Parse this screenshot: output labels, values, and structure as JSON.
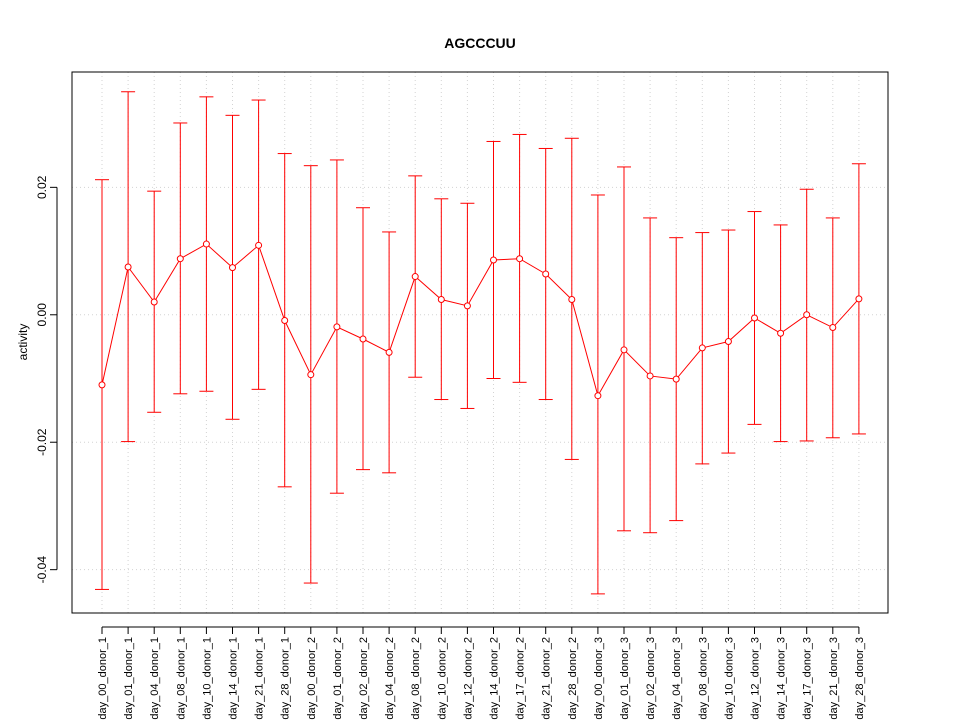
{
  "chart_data": {
    "type": "line",
    "title": "AGCCCUU",
    "xlabel": "",
    "ylabel": "activity",
    "ylim": [
      -0.0468,
      0.0381
    ],
    "yticks": [
      -0.04,
      -0.02,
      0.0,
      0.02
    ],
    "ytick_labels": [
      "-0.04",
      "-0.02",
      "0.00",
      "0.02"
    ],
    "grid": true,
    "legend": "none",
    "colors": {
      "series": "#ff0000",
      "grid": "#d3d3d3",
      "axis": "#000000"
    },
    "categories": [
      "day_00_donor_1",
      "day_01_donor_1",
      "day_04_donor_1",
      "day_08_donor_1",
      "day_10_donor_1",
      "day_14_donor_1",
      "day_21_donor_1",
      "day_28_donor_1",
      "day_00_donor_2",
      "day_01_donor_2",
      "day_02_donor_2",
      "day_04_donor_2",
      "day_08_donor_2",
      "day_10_donor_2",
      "day_12_donor_2",
      "day_14_donor_2",
      "day_17_donor_2",
      "day_21_donor_2",
      "day_28_donor_2",
      "day_00_donor_3",
      "day_01_donor_3",
      "day_02_donor_3",
      "day_04_donor_3",
      "day_08_donor_3",
      "day_10_donor_3",
      "day_12_donor_3",
      "day_14_donor_3",
      "day_17_donor_3",
      "day_21_donor_3",
      "day_28_donor_3"
    ],
    "series": [
      {
        "values": [
          -0.011,
          0.0075,
          0.002,
          0.0088,
          0.0111,
          0.0074,
          0.0109,
          -0.0009,
          -0.0094,
          -0.0019,
          -0.0038,
          -0.0059,
          0.006,
          0.0024,
          0.0014,
          0.0086,
          0.0088,
          0.0064,
          0.0024,
          -0.0127,
          -0.0055,
          -0.0096,
          -0.0101,
          -0.0052,
          -0.0042,
          -0.0005,
          -0.0029,
          0.0,
          -0.002,
          0.0025
        ],
        "upper": [
          0.0212,
          0.035,
          0.0194,
          0.0301,
          0.0342,
          0.0313,
          0.0337,
          0.0253,
          0.0234,
          0.0243,
          0.0168,
          0.013,
          0.0218,
          0.0182,
          0.0175,
          0.0272,
          0.0283,
          0.0261,
          0.0277,
          0.0188,
          0.0232,
          0.0152,
          0.0121,
          0.0129,
          0.0133,
          0.0162,
          0.0141,
          0.0197,
          0.0152,
          0.0237
        ],
        "lower": [
          -0.0431,
          -0.0199,
          -0.0153,
          -0.0124,
          -0.012,
          -0.0164,
          -0.0117,
          -0.027,
          -0.0421,
          -0.028,
          -0.0243,
          -0.0248,
          -0.0098,
          -0.0133,
          -0.0147,
          -0.01,
          -0.0106,
          -0.0133,
          -0.0227,
          -0.0438,
          -0.0339,
          -0.0342,
          -0.0323,
          -0.0234,
          -0.0217,
          -0.0172,
          -0.0199,
          -0.0198,
          -0.0193,
          -0.0187
        ]
      }
    ]
  }
}
